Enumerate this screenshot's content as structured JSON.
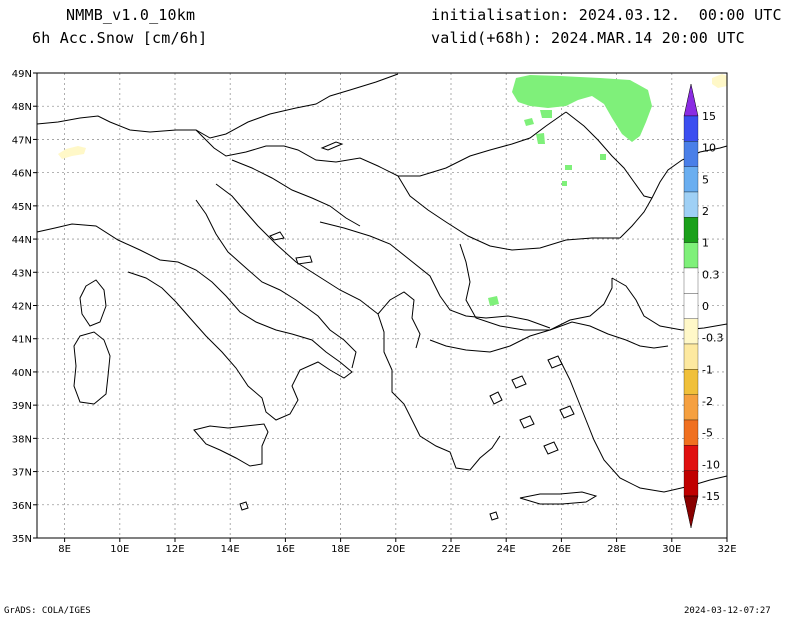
{
  "header": {
    "model": "NMMB_v1.0_10km",
    "variable": "6h Acc.Snow [cm/6h]",
    "init": "initialisation: 2024.03.12.  00:00 UTC",
    "valid": "valid(+68h): 2024.MAR.14 20:00 UTC"
  },
  "footer": {
    "left": "GrADS: COLA/IGES",
    "right": "2024-03-12-07:27"
  },
  "map": {
    "lon_labels": [
      "8E",
      "10E",
      "12E",
      "14E",
      "16E",
      "18E",
      "20E",
      "22E",
      "24E",
      "26E",
      "28E",
      "30E",
      "32E"
    ],
    "lat_labels": [
      "49N",
      "48N",
      "47N",
      "46N",
      "45N",
      "44N",
      "43N",
      "42N",
      "41N",
      "40N",
      "39N",
      "38N",
      "37N",
      "36N",
      "35N"
    ],
    "lon_range": [
      7,
      32
    ],
    "lat_range": [
      35,
      49
    ]
  },
  "colorbar": {
    "labels": [
      "15",
      "10",
      "5",
      "2",
      "1",
      "0.3",
      "0",
      "-0.3",
      "-1",
      "-2",
      "-5",
      "-10",
      "-15"
    ],
    "colors": [
      "#8a2be2",
      "#3b4ef0",
      "#4a7fe8",
      "#6aaef0",
      "#9fd0f5",
      "#1aa01a",
      "#7ff07a",
      "#ffffff",
      "#ffffff",
      "#fff8c8",
      "#fde9a0",
      "#f0c03a",
      "#f5a040",
      "#f07020",
      "#e01010",
      "#c00000",
      "#880000"
    ]
  },
  "fields": {
    "snow_color": "#7ff07a",
    "neg_color": "#fff8c8"
  }
}
